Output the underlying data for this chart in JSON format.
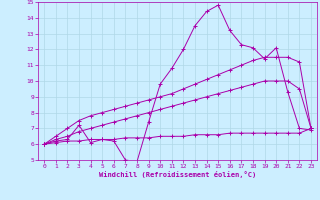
{
  "xlabel": "Windchill (Refroidissement éolien,°C)",
  "bg_color": "#cceeff",
  "grid_color": "#b0d8e8",
  "line_color": "#aa00aa",
  "x_data": [
    0,
    1,
    2,
    3,
    4,
    5,
    6,
    7,
    8,
    9,
    10,
    11,
    12,
    13,
    14,
    15,
    16,
    17,
    18,
    19,
    20,
    21,
    22,
    23
  ],
  "line1": [
    6.0,
    6.2,
    6.3,
    7.2,
    6.1,
    6.3,
    6.2,
    5.0,
    4.9,
    7.4,
    9.8,
    10.8,
    12.0,
    13.5,
    14.4,
    14.8,
    13.2,
    12.3,
    12.1,
    11.4,
    12.1,
    9.3,
    7.0,
    6.9
  ],
  "line2": [
    6.0,
    6.5,
    7.0,
    7.5,
    7.8,
    8.0,
    8.2,
    8.4,
    8.6,
    8.8,
    9.0,
    9.2,
    9.5,
    9.8,
    10.1,
    10.4,
    10.7,
    11.0,
    11.3,
    11.5,
    11.5,
    11.5,
    11.2,
    7.0
  ],
  "line3": [
    6.0,
    6.3,
    6.5,
    6.8,
    7.0,
    7.2,
    7.4,
    7.6,
    7.8,
    8.0,
    8.2,
    8.4,
    8.6,
    8.8,
    9.0,
    9.2,
    9.4,
    9.6,
    9.8,
    10.0,
    10.0,
    10.0,
    9.5,
    7.0
  ],
  "line4": [
    6.0,
    6.1,
    6.2,
    6.2,
    6.3,
    6.3,
    6.3,
    6.4,
    6.4,
    6.4,
    6.5,
    6.5,
    6.5,
    6.6,
    6.6,
    6.6,
    6.7,
    6.7,
    6.7,
    6.7,
    6.7,
    6.7,
    6.7,
    7.0
  ],
  "ylim": [
    5,
    15
  ],
  "xlim": [
    -0.5,
    23.5
  ],
  "yticks": [
    5,
    6,
    7,
    8,
    9,
    10,
    11,
    12,
    13,
    14,
    15
  ],
  "xticks": [
    0,
    1,
    2,
    3,
    4,
    5,
    6,
    7,
    8,
    9,
    10,
    11,
    12,
    13,
    14,
    15,
    16,
    17,
    18,
    19,
    20,
    21,
    22,
    23
  ]
}
